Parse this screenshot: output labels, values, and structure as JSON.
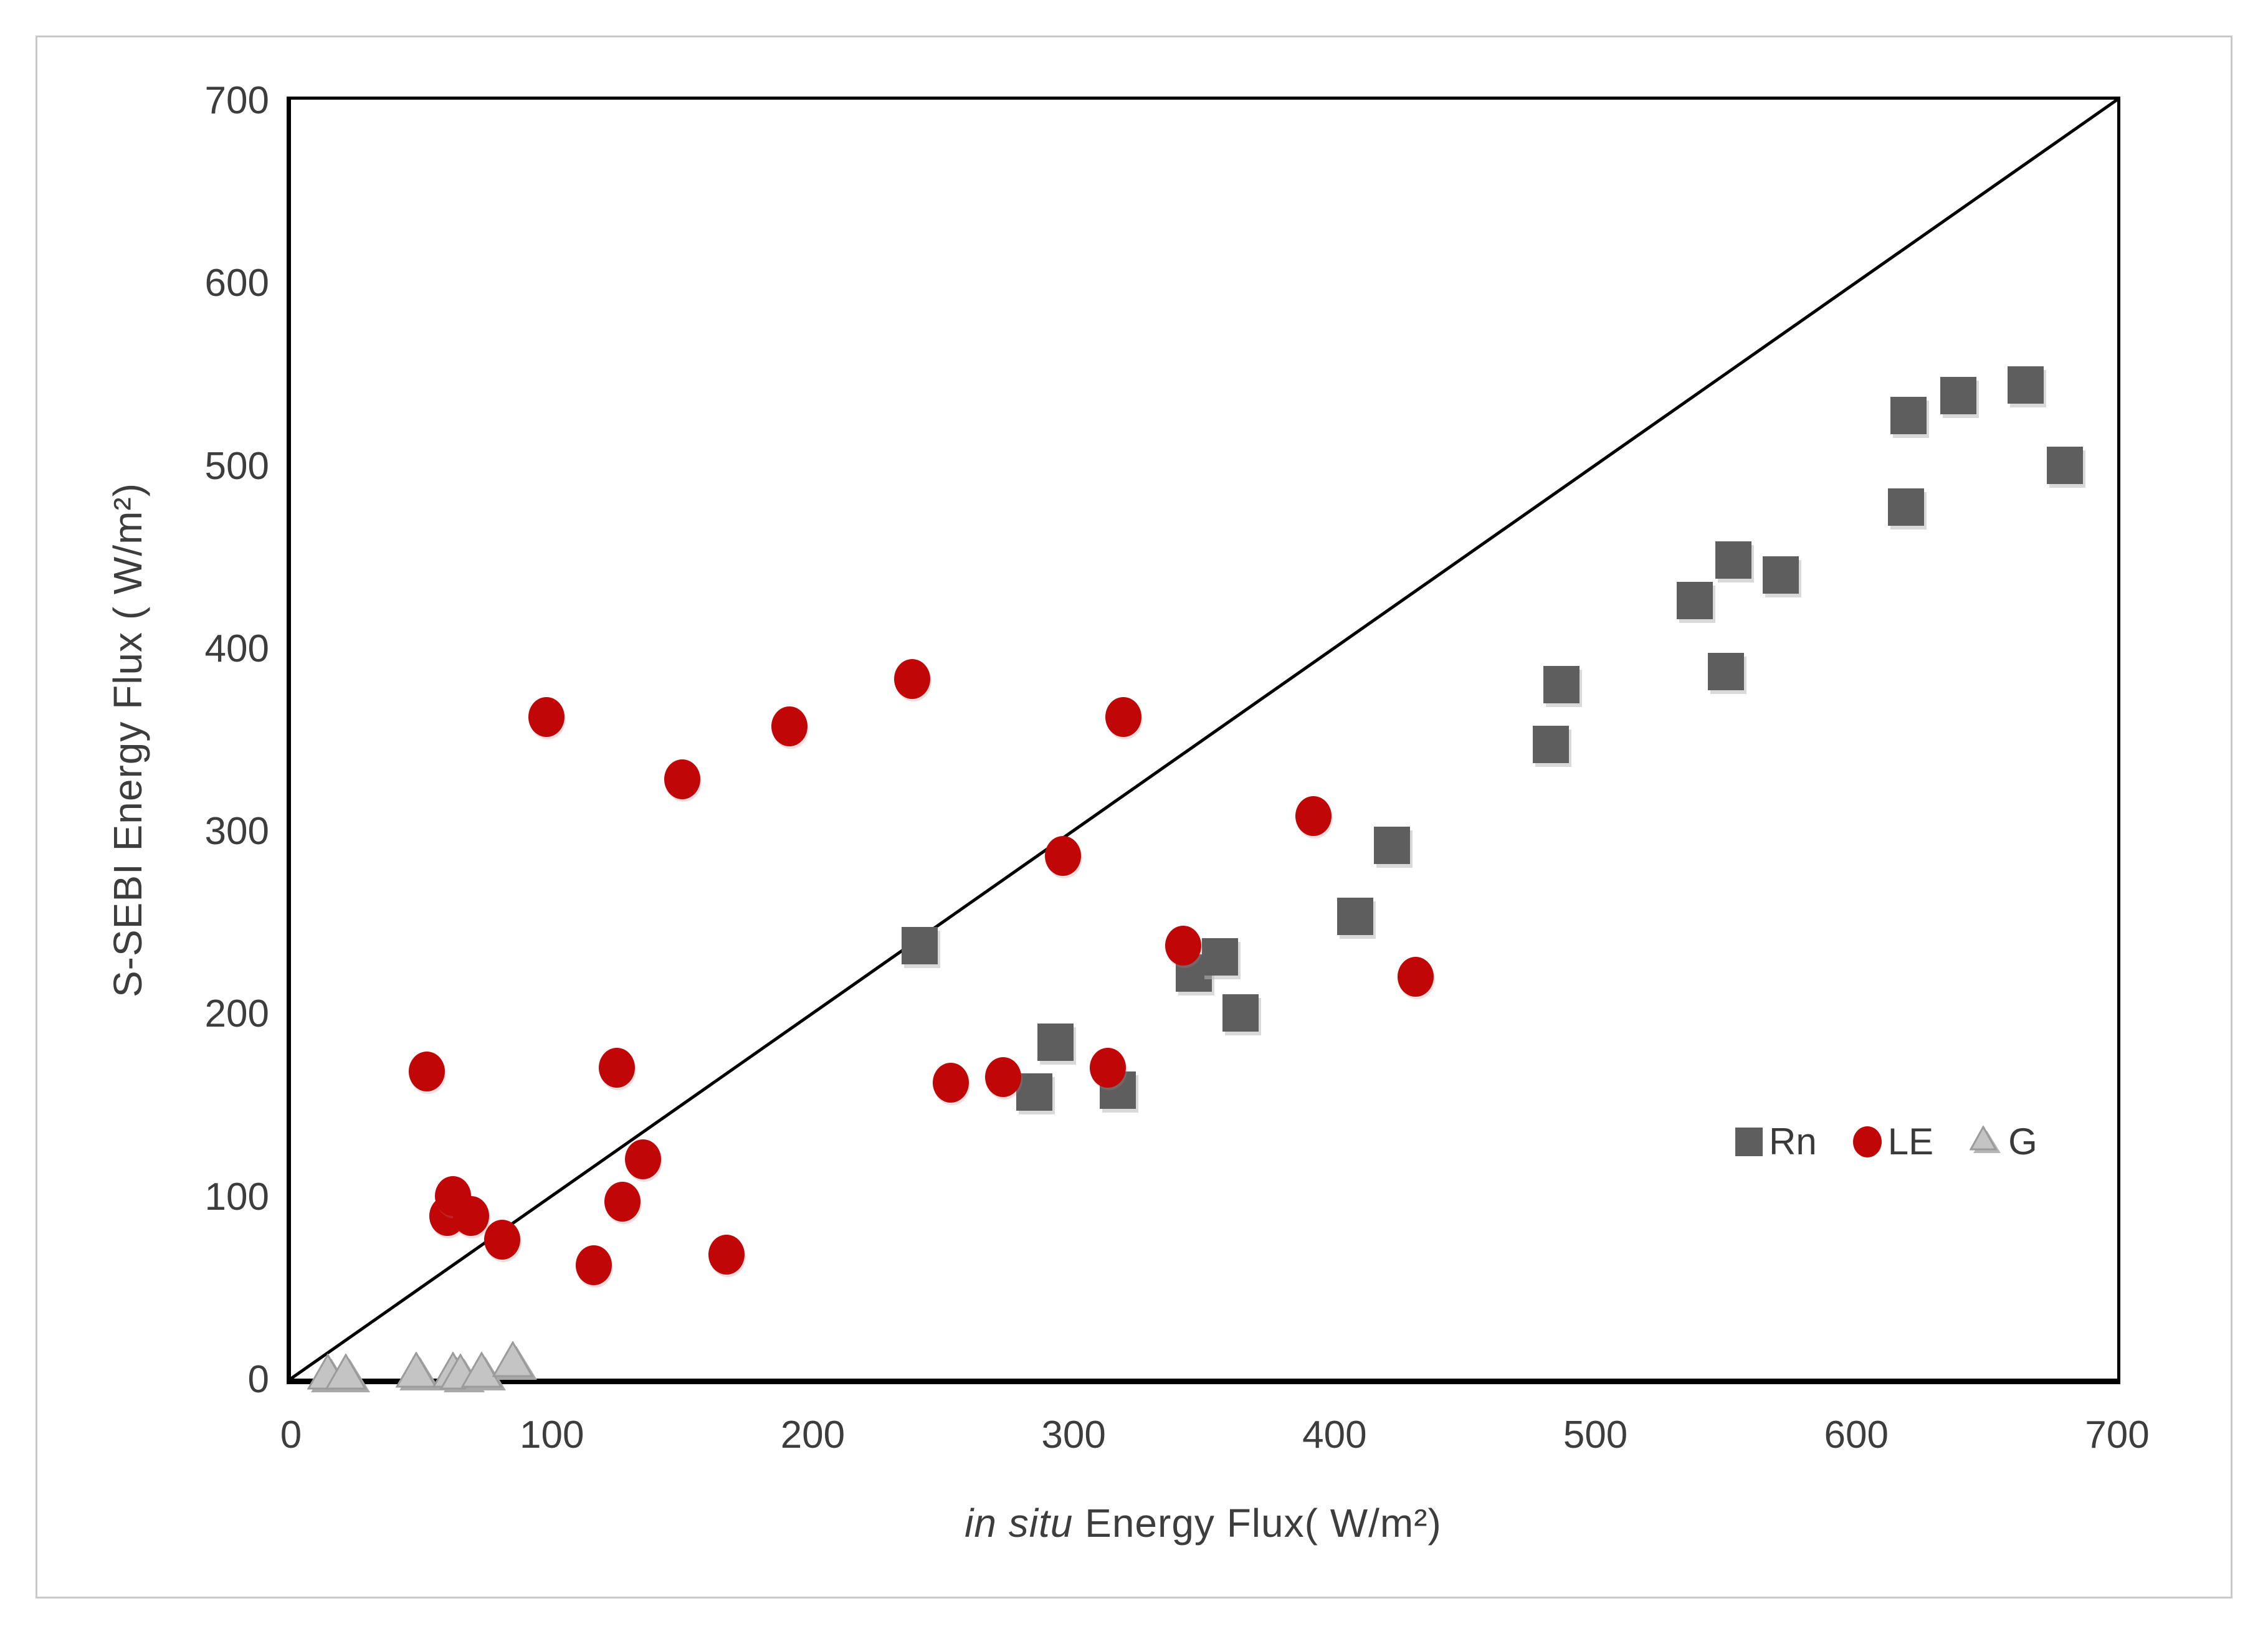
{
  "figure": {
    "background": "#ffffff",
    "frame_color": "#c9c9c9"
  },
  "axes": {
    "ylabel": "S-SEBI Energy Flux ( W/m²)",
    "xlabel_italic": "in situ",
    "xlabel_rest": " Energy Flux( W/m²)",
    "tick_color": "#3d3d3d",
    "axis_color": "#000000"
  },
  "legend": {
    "entries": [
      {
        "label": "Rn",
        "marker": "square",
        "color": "#5e5e5e"
      },
      {
        "label": "LE",
        "marker": "circle",
        "color": "#c00606"
      },
      {
        "label": "G",
        "marker": "triangle",
        "color": "#c4c4c4"
      }
    ]
  },
  "chart_data": {
    "type": "scatter",
    "title": "",
    "xlabel": "in situ Energy Flux( W/m²)",
    "ylabel": "S-SEBI Energy Flux ( W/m²)",
    "xlim": [
      0,
      700
    ],
    "ylim": [
      0,
      700
    ],
    "xticks": [
      0,
      100,
      200,
      300,
      400,
      500,
      600,
      700
    ],
    "yticks": [
      0,
      100,
      200,
      300,
      400,
      500,
      600,
      700
    ],
    "grid": false,
    "legend_position": "inside right, mid-lower",
    "reference_line": {
      "type": "1:1 diagonal",
      "from": [
        0,
        0
      ],
      "to": [
        700,
        700
      ],
      "color": "#000000"
    },
    "series": [
      {
        "name": "Rn",
        "marker": "square",
        "color": "#5e5e5e",
        "points": [
          [
            241,
            237
          ],
          [
            285,
            157
          ],
          [
            293,
            184
          ],
          [
            317,
            158
          ],
          [
            346,
            222
          ],
          [
            356,
            231
          ],
          [
            364,
            200
          ],
          [
            408,
            253
          ],
          [
            422,
            292
          ],
          [
            483,
            347
          ],
          [
            487,
            380
          ],
          [
            538,
            426
          ],
          [
            550,
            387
          ],
          [
            553,
            448
          ],
          [
            571,
            440
          ],
          [
            619,
            477
          ],
          [
            620,
            527
          ],
          [
            639,
            538
          ],
          [
            665,
            544
          ],
          [
            680,
            500
          ]
        ]
      },
      {
        "name": "LE",
        "marker": "circle",
        "color": "#c00606",
        "points": [
          [
            52,
            168
          ],
          [
            60,
            89
          ],
          [
            62,
            100
          ],
          [
            69,
            89
          ],
          [
            81,
            76
          ],
          [
            98,
            362
          ],
          [
            116,
            62
          ],
          [
            125,
            170
          ],
          [
            127,
            97
          ],
          [
            135,
            120
          ],
          [
            150,
            328
          ],
          [
            167,
            68
          ],
          [
            191,
            357
          ],
          [
            238,
            383
          ],
          [
            253,
            162
          ],
          [
            273,
            165
          ],
          [
            296,
            286
          ],
          [
            313,
            170
          ],
          [
            319,
            362
          ],
          [
            342,
            237
          ],
          [
            392,
            308
          ],
          [
            431,
            220
          ]
        ]
      },
      {
        "name": "G",
        "marker": "triangle",
        "color": "#c4c4c4",
        "stroke": "#9b9b9b",
        "shadow": "#a8a8a8",
        "points": [
          [
            15,
            2
          ],
          [
            22,
            2
          ],
          [
            49,
            3
          ],
          [
            63,
            3
          ],
          [
            66,
            2
          ],
          [
            74,
            3
          ],
          [
            86,
            9
          ]
        ]
      }
    ]
  }
}
